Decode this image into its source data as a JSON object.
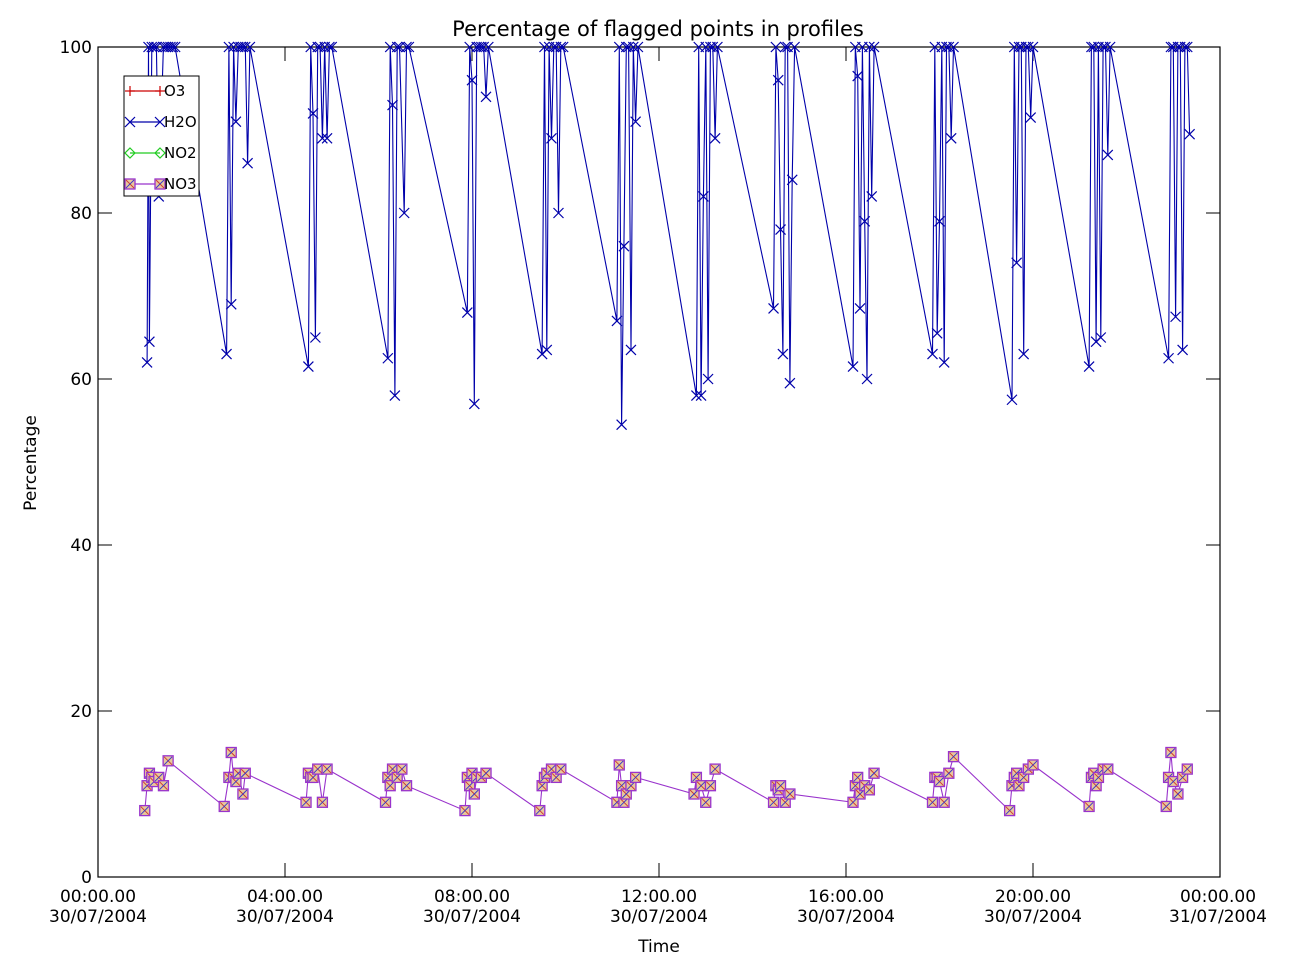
{
  "chart_data": {
    "type": "line",
    "title": "Percentage of flagged points in profiles",
    "xlabel": "Time",
    "ylabel": "Percentage",
    "ylim": [
      0,
      100
    ],
    "xlim": [
      "00:00.00 30/07/2004",
      "00:00.00 31/07/2004"
    ],
    "x_unit": "hours after 00:00.00 30/07/2004",
    "x_ticks": [
      {
        "line1": "00:00.00",
        "line2": "30/07/2004"
      },
      {
        "line1": "04:00.00",
        "line2": "30/07/2004"
      },
      {
        "line1": "08:00.00",
        "line2": "30/07/2004"
      },
      {
        "line1": "12:00.00",
        "line2": "30/07/2004"
      },
      {
        "line1": "16:00.00",
        "line2": "30/07/2004"
      },
      {
        "line1": "20:00.00",
        "line2": "30/07/2004"
      },
      {
        "line1": "00:00.00",
        "line2": "31/07/2004"
      }
    ],
    "y_ticks": [
      "0",
      "20",
      "40",
      "60",
      "80",
      "100"
    ],
    "grid": false,
    "legend_position": "top-left",
    "legend": [
      {
        "name": "O3",
        "color": "#cc0000",
        "marker": "plus"
      },
      {
        "name": "H2O",
        "color": "#0000aa",
        "marker": "x"
      },
      {
        "name": "NO2",
        "color": "#22cc22",
        "marker": "diamond"
      },
      {
        "name": "NO3",
        "color": "#9933cc",
        "marker": "square"
      }
    ],
    "series": [
      {
        "name": "H2O",
        "color": "#0000aa",
        "marker": "x",
        "x": [
          1.05,
          1.08,
          1.1,
          1.15,
          1.2,
          1.25,
          1.3,
          1.4,
          1.45,
          1.5,
          1.55,
          1.6,
          1.65,
          2.75,
          2.8,
          2.85,
          2.9,
          2.95,
          3.0,
          3.05,
          3.1,
          3.15,
          3.2,
          3.25,
          4.5,
          4.55,
          4.6,
          4.65,
          4.7,
          4.75,
          4.8,
          4.85,
          4.9,
          4.95,
          5.0,
          6.2,
          6.25,
          6.3,
          6.35,
          6.4,
          6.45,
          6.55,
          6.6,
          6.65,
          7.9,
          7.95,
          8.0,
          8.05,
          8.1,
          8.15,
          8.2,
          8.25,
          8.3,
          8.35,
          9.5,
          9.55,
          9.6,
          9.65,
          9.7,
          9.75,
          9.8,
          9.85,
          9.9,
          9.95,
          11.1,
          11.15,
          11.2,
          11.25,
          11.3,
          11.35,
          11.4,
          11.45,
          11.5,
          11.55,
          12.8,
          12.85,
          12.9,
          12.95,
          13.0,
          13.05,
          13.1,
          13.15,
          13.2,
          13.25,
          14.45,
          14.5,
          14.55,
          14.6,
          14.65,
          14.7,
          14.75,
          14.8,
          14.85,
          14.9,
          16.15,
          16.2,
          16.25,
          16.3,
          16.35,
          16.4,
          16.45,
          16.5,
          16.55,
          16.6,
          17.85,
          17.9,
          17.95,
          18.0,
          18.05,
          18.1,
          18.15,
          18.2,
          18.25,
          18.3,
          19.55,
          19.6,
          19.65,
          19.7,
          19.75,
          19.8,
          19.85,
          19.9,
          19.95,
          20.0,
          21.2,
          21.25,
          21.3,
          21.35,
          21.4,
          21.45,
          21.5,
          21.55,
          21.6,
          21.65,
          22.9,
          22.95,
          23.0,
          23.05,
          23.1,
          23.15,
          23.2,
          23.25,
          23.3,
          23.35
        ],
        "y": [
          62,
          100,
          64.5,
          100,
          100,
          100,
          82,
          100,
          100,
          100,
          100,
          100,
          100,
          63,
          100,
          69,
          100,
          91,
          100,
          100,
          100,
          100,
          86,
          100,
          61.5,
          100,
          92,
          65,
          100,
          100,
          89,
          100,
          89,
          100,
          100,
          62.5,
          100,
          93,
          58,
          100,
          100,
          80,
          100,
          100,
          68,
          100,
          96,
          57,
          100,
          100,
          100,
          100,
          94,
          100,
          63,
          100,
          63.5,
          100,
          89,
          100,
          100,
          80,
          100,
          100,
          67,
          100,
          54.5,
          76,
          100,
          100,
          63.5,
          100,
          91,
          100,
          58,
          100,
          58,
          82,
          100,
          60,
          100,
          100,
          89,
          100,
          68.5,
          100,
          96,
          78,
          63,
          100,
          100,
          59.5,
          84,
          100,
          61.5,
          100,
          96.5,
          68.5,
          100,
          79,
          60,
          100,
          82,
          100,
          63,
          100,
          65.5,
          79,
          100,
          62,
          100,
          100,
          89,
          100,
          57.5,
          100,
          74,
          100,
          100,
          63,
          100,
          100,
          91.5,
          100,
          61.5,
          100,
          100,
          64.5,
          100,
          65,
          100,
          100,
          87,
          100,
          62.5,
          100,
          100,
          67.5,
          100,
          100,
          63.5,
          100,
          100,
          89.5
        ]
      },
      {
        "name": "NO3",
        "color": "#9933cc",
        "marker": "square",
        "x": [
          1.0,
          1.05,
          1.1,
          1.15,
          1.2,
          1.3,
          1.4,
          1.5,
          2.7,
          2.8,
          2.85,
          2.9,
          2.95,
          3.0,
          3.1,
          3.15,
          4.45,
          4.5,
          4.55,
          4.6,
          4.7,
          4.8,
          4.9,
          6.15,
          6.2,
          6.25,
          6.3,
          6.4,
          6.5,
          6.6,
          7.85,
          7.9,
          7.95,
          8.0,
          8.05,
          8.1,
          8.2,
          8.3,
          9.45,
          9.5,
          9.55,
          9.6,
          9.7,
          9.8,
          9.9,
          11.1,
          11.15,
          11.2,
          11.25,
          11.3,
          11.4,
          11.5,
          12.75,
          12.8,
          12.9,
          13.0,
          13.1,
          13.2,
          14.45,
          14.5,
          14.55,
          14.6,
          14.7,
          14.8,
          16.15,
          16.2,
          16.25,
          16.3,
          16.4,
          16.5,
          16.6,
          17.85,
          17.9,
          17.95,
          18.0,
          18.1,
          18.2,
          18.3,
          19.5,
          19.55,
          19.6,
          19.65,
          19.7,
          19.8,
          19.9,
          20.0,
          21.2,
          21.25,
          21.3,
          21.35,
          21.4,
          21.5,
          21.6,
          22.85,
          22.9,
          22.95,
          23.0,
          23.1,
          23.2,
          23.3
        ],
        "y": [
          8,
          11,
          12.5,
          12,
          11.5,
          12,
          11,
          14,
          8.5,
          12,
          15,
          12,
          11.5,
          12.5,
          10,
          12.5,
          9,
          12.5,
          12,
          12,
          13,
          9,
          13,
          9,
          12,
          11,
          13,
          12,
          13,
          11,
          8,
          12,
          11,
          12.5,
          10,
          12,
          12,
          12.5,
          8,
          11,
          12,
          12.5,
          13,
          12,
          13,
          9,
          13.5,
          11,
          9,
          10,
          11,
          12,
          10,
          12,
          11,
          9,
          11,
          13,
          9,
          11,
          10.5,
          11,
          9,
          10,
          9,
          11,
          12,
          10,
          11,
          10.5,
          12.5,
          9,
          12,
          12,
          11.5,
          9,
          12.5,
          14.5,
          8,
          11,
          12,
          12.5,
          11,
          12,
          13,
          13.5,
          8.5,
          12,
          12.5,
          11,
          12,
          13,
          13,
          8.5,
          12,
          15,
          11.5,
          10,
          12,
          13
        ]
      }
    ]
  }
}
